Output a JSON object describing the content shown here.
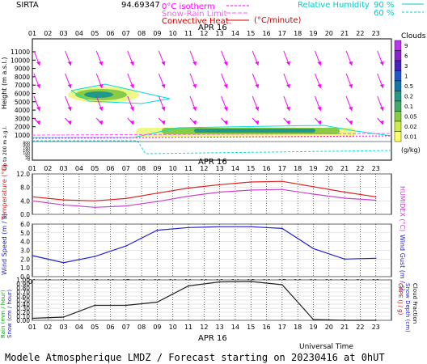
{
  "header": {
    "station": "SIRTA",
    "coords": "94.69347",
    "legend_isotherm": "0°C isotherm",
    "legend_snowrain": "Snow-Rain Limit",
    "legend_convective": "Convective Heat.",
    "convective_unit": "(°C/minute)",
    "legend_rh": "Relative Humidity",
    "rh_90": "90 %",
    "rh_60": "60 %"
  },
  "panels": {
    "date_label": "APR 16",
    "cloud_ylabel": "Height  (m a.s.l.)",
    "cloud_ylabel2": "Up to 200 m a.g.l.",
    "clouds_title": "Clouds",
    "clouds_unit": "(g/kg)",
    "temp_ylabel": "Temperature (°C)",
    "humidex_label": "HUMIDEX (°C)",
    "wind_ylabel": "Wind Speed (m / s)",
    "gust_label": "Wind Gust (m / s)",
    "rain_label": "Rain (mm / hour)",
    "snow_label": "Snow (cm / hour)",
    "cape_label": "CAPE (J / g)",
    "snowdepth_label": "Snow Depth (cm)",
    "cloudfrac_label": "Cloud Fraction",
    "universal_time": "Universal Time",
    "footer": "Modele Atmospherique LMDZ / Forecast starting on 20230416 at 0hUT"
  },
  "colors": {
    "isotherm": "#ff00ff",
    "convective": "#cc0000",
    "rh": "#00e0e0",
    "temperature": "#dd2222",
    "humidex": "#cc44cc",
    "wind": "#2222cc",
    "cloud_fraction": "#222222"
  },
  "chart_data": {
    "type": "line",
    "hour_ticks": [
      "01",
      "02",
      "03",
      "04",
      "05",
      "06",
      "07",
      "08",
      "09",
      "10",
      "11",
      "12",
      "13",
      "14",
      "15",
      "16",
      "17",
      "18",
      "19",
      "20",
      "21",
      "22",
      "23"
    ],
    "cloud_height_ticks": [
      "11000",
      "10000",
      "9000",
      "8000",
      "7000",
      "6000",
      "5000",
      "4000",
      "3000",
      "2000",
      "1000",
      "800",
      "600",
      "400",
      "200",
      "180",
      "160",
      "140",
      "120",
      "100",
      "80",
      "60",
      "40",
      "20",
      "0"
    ],
    "colorbar_labels": [
      "9",
      "6",
      "3",
      "1",
      "0.5",
      "0.2",
      "0.1",
      "0.05",
      "0.02",
      "0.01"
    ],
    "colorbar_colors": [
      "#ffff66",
      "#ccee44",
      "#88cc44",
      "#44aa66",
      "#229988",
      "#1177aa",
      "#2255cc",
      "#4422bb",
      "#8822cc",
      "#bb33ee"
    ],
    "temperature": {
      "yticks": [
        "12.0",
        "8.0",
        "4.0",
        "0.0"
      ],
      "ylim": [
        0,
        12
      ],
      "series": [
        {
          "name": "Temperature",
          "x": [
            1,
            3,
            5,
            7,
            9,
            11,
            13,
            15,
            17,
            19,
            21,
            23
          ],
          "values": [
            5.2,
            4.3,
            4.0,
            4.7,
            6.3,
            7.8,
            8.8,
            9.6,
            9.8,
            8.2,
            6.6,
            5.2
          ]
        },
        {
          "name": "HUMIDEX",
          "x": [
            1,
            3,
            5,
            7,
            9,
            11,
            13,
            15,
            17,
            19,
            21,
            23
          ],
          "values": [
            4.0,
            2.8,
            2.1,
            2.5,
            3.8,
            5.4,
            6.6,
            7.2,
            7.4,
            6.0,
            4.8,
            4.2
          ]
        }
      ]
    },
    "wind": {
      "yticks": [
        "6.0",
        "5.0",
        "4.0",
        "3.0",
        "2.0",
        "1.0",
        "0.0"
      ],
      "ylim": [
        0,
        6
      ],
      "series": [
        {
          "name": "Wind Speed",
          "x": [
            1,
            3,
            5,
            7,
            9,
            11,
            13,
            15,
            17,
            19,
            21,
            23
          ],
          "values": [
            2.4,
            1.6,
            2.3,
            3.5,
            5.3,
            5.6,
            5.7,
            5.7,
            5.5,
            3.2,
            2.0,
            2.1
          ]
        }
      ]
    },
    "precip": {
      "yticks": [
        "1.00",
        "0.90",
        "0.80",
        "0.70",
        "0.60",
        "0.50",
        "0.40",
        "0.30",
        "0.20",
        "0.10",
        "0.00"
      ],
      "ylim": [
        0,
        1
      ],
      "series": [
        {
          "name": "Cloud Fraction",
          "x": [
            1,
            3,
            5,
            7,
            9,
            11,
            13,
            15,
            17,
            19,
            21,
            23
          ],
          "values": [
            0.05,
            0.08,
            0.37,
            0.37,
            0.45,
            0.85,
            0.95,
            0.96,
            0.88,
            0.02,
            0.0,
            0.0
          ]
        }
      ]
    }
  }
}
